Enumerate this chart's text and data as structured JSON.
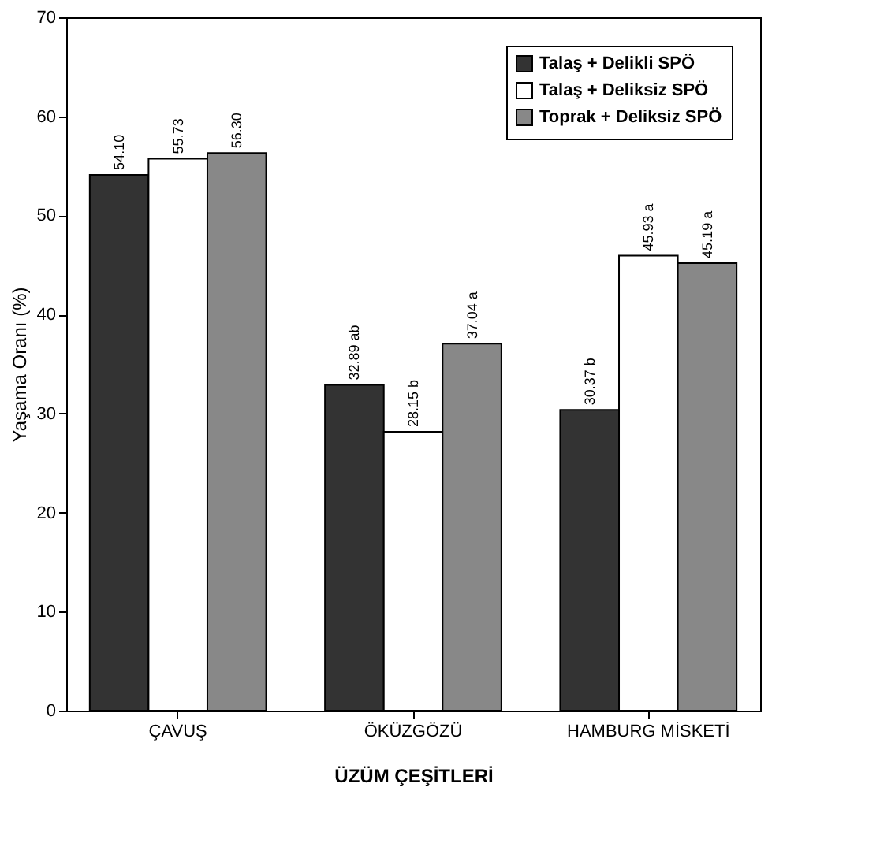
{
  "chart_data": {
    "type": "bar",
    "xlabel": "ÜZÜM    ÇEŞİTLERİ",
    "ylabel": "Yaşama Oranı (%)",
    "categories": [
      "ÇAVUŞ",
      "ÖKÜZGÖZÜ",
      "HAMBURG MİSKETİ"
    ],
    "series": [
      {
        "name": "Talaş + Delikli SPÖ",
        "color": "#333333",
        "values": [
          54.1,
          32.89,
          30.37
        ],
        "value_labels": [
          "54.10",
          "32.89 ab",
          "30.37 b"
        ]
      },
      {
        "name": "Talaş + Deliksiz SPÖ",
        "color": "#ffffff",
        "values": [
          55.73,
          28.15,
          45.93
        ],
        "value_labels": [
          "55.73",
          "28.15 b",
          "45.93 a"
        ]
      },
      {
        "name": "Toprak + Deliksiz SPÖ",
        "color": "#888888",
        "values": [
          56.3,
          37.04,
          45.19
        ],
        "value_labels": [
          "56.30",
          "37.04 a",
          "45.19 a"
        ]
      }
    ],
    "ylim": [
      0,
      70
    ],
    "yticks": [
      0,
      10,
      20,
      30,
      40,
      50,
      60,
      70
    ],
    "grid": false,
    "legend": "top right"
  }
}
